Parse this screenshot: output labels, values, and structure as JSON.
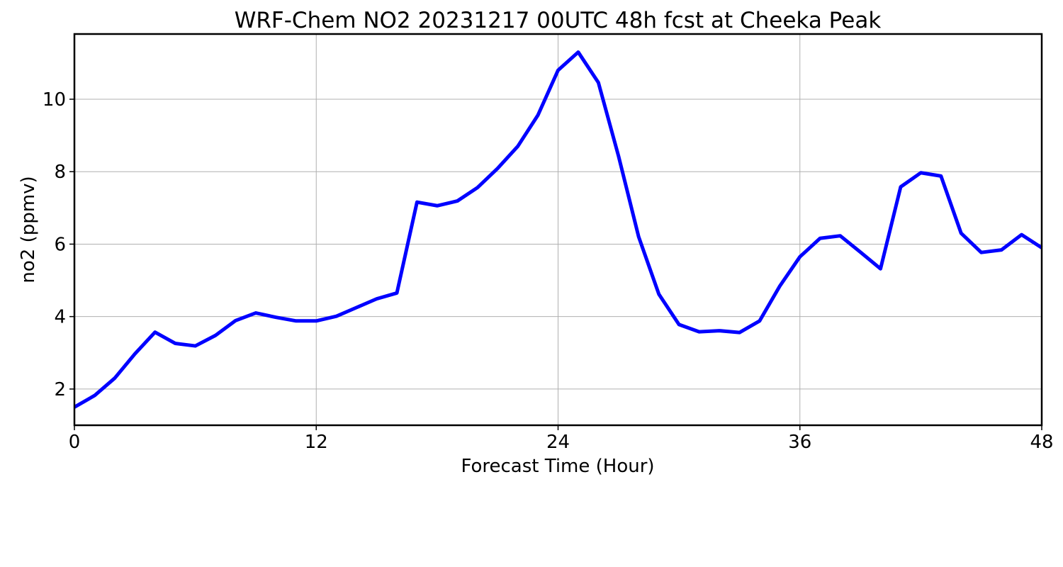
{
  "chart_data": {
    "type": "line",
    "title": "WRF-Chem NO2  20231217 00UTC 48h fcst at Cheeka Peak",
    "xlabel": "Forecast Time (Hour)",
    "ylabel": "no2  (ppmv)",
    "xlim": [
      0,
      48
    ],
    "ylim": [
      1.0,
      11.8
    ],
    "xticks": [
      0,
      12,
      24,
      36,
      48
    ],
    "yticks": [
      2,
      4,
      6,
      8,
      10
    ],
    "grid": true,
    "series": [
      {
        "color": "#0000ff",
        "x": [
          0,
          1,
          2,
          3,
          4,
          5,
          6,
          7,
          8,
          9,
          10,
          11,
          12,
          13,
          14,
          15,
          16,
          17,
          18,
          19,
          20,
          21,
          22,
          23,
          24,
          25,
          26,
          27,
          28,
          29,
          30,
          31,
          32,
          33,
          34,
          35,
          36,
          37,
          38,
          39,
          40,
          41,
          42,
          43,
          44,
          45,
          46,
          47,
          48
        ],
        "y": [
          1.5,
          1.82,
          2.3,
          2.97,
          3.57,
          3.26,
          3.19,
          3.48,
          3.89,
          4.1,
          3.98,
          3.88,
          3.88,
          4.01,
          4.25,
          4.49,
          4.65,
          7.16,
          7.06,
          7.19,
          7.56,
          8.09,
          8.7,
          9.56,
          10.8,
          11.3,
          10.46,
          8.43,
          6.2,
          4.62,
          3.78,
          3.58,
          3.61,
          3.56,
          3.88,
          4.84,
          5.65,
          6.16,
          6.23,
          5.78,
          5.32,
          7.58,
          7.97,
          7.88,
          6.3,
          5.77,
          5.84,
          6.26,
          5.9
        ]
      }
    ]
  }
}
